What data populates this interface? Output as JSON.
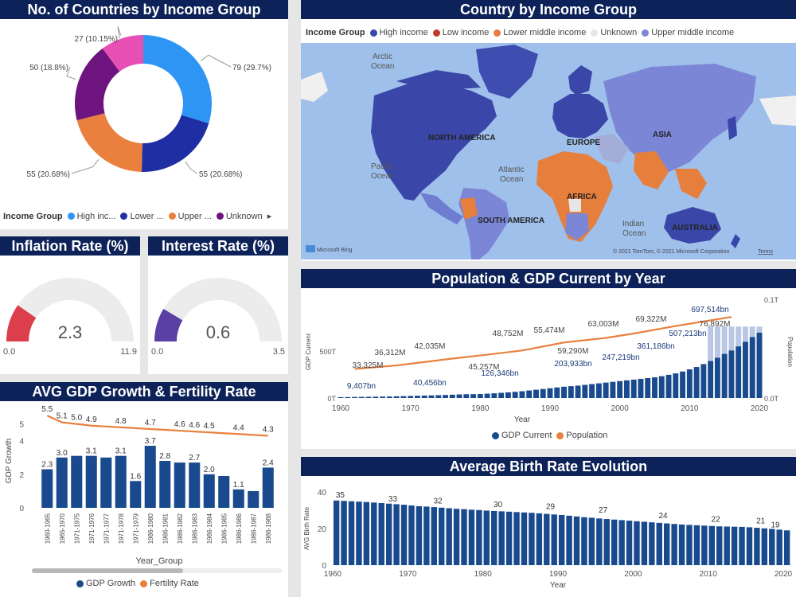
{
  "donut": {
    "title": "No. of Countries by Income Group",
    "legend_title": "Income Group",
    "legend": [
      {
        "label": "High inc...",
        "color": "#2f95f5"
      },
      {
        "label": "Lower ...",
        "color": "#1f2fa3"
      },
      {
        "label": "Upper ...",
        "color": "#e9803e"
      },
      {
        "label": "Unknown",
        "color": "#6e147e"
      }
    ],
    "more_icon": "caret-right-icon",
    "chart_data": {
      "type": "pie",
      "slices": [
        {
          "label": "79 (29.7%)",
          "value": 79,
          "color": "#2f95f5"
        },
        {
          "label": "55 (20.68%)",
          "value": 55,
          "color": "#1f2fa3"
        },
        {
          "label": "55 (20.68%)",
          "value": 55,
          "color": "#e9803e"
        },
        {
          "label": "50 (18.8%)",
          "value": 50,
          "color": "#6e147e"
        },
        {
          "label": "27 (10.15%)",
          "value": 27,
          "color": "#e84fb4"
        }
      ]
    }
  },
  "map": {
    "title": "Country by Income Group",
    "legend_title": "Income Group",
    "legend": [
      {
        "label": "High income",
        "color": "#3949ab"
      },
      {
        "label": "Low income",
        "color": "#c0392b"
      },
      {
        "label": "Lower middle income",
        "color": "#e67e3c"
      },
      {
        "label": "Unknown",
        "color": "#e6e6e6"
      },
      {
        "label": "Upper middle income",
        "color": "#7b86d6"
      }
    ],
    "labels": {
      "north_america": "NORTH AMERICA",
      "europe": "EUROPE",
      "asia": "ASIA",
      "africa": "AFRICA",
      "south_america": "SOUTH AMERICA",
      "australia": "AUSTRALIA",
      "arctic_1": "Arctic",
      "arctic_2": "Ocean",
      "pacific_1": "Pacific",
      "pacific_2": "Ocean",
      "atlantic_1": "Atlantic",
      "atlantic_2": "Ocean",
      "indian_1": "Indian",
      "indian_2": "Ocean"
    },
    "attribution": "© 2021 TomTom, © 2021 Microsoft Corporation",
    "terms": "Terms",
    "bing_logo": "Microsoft Bing"
  },
  "inflation": {
    "title": "Inflation Rate (%)",
    "value": "2.3",
    "min": "0.0",
    "max": "11.9",
    "chart_data": {
      "type": "gauge",
      "value": 2.3,
      "min": 0,
      "max": 11.9,
      "color": "#dd3e4c"
    }
  },
  "interest": {
    "title": "Interest Rate (%)",
    "value": "0.6",
    "min": "0.0",
    "max": "3.5",
    "chart_data": {
      "type": "gauge",
      "value": 0.6,
      "min": 0,
      "max": 3.5,
      "color": "#5b3fa3"
    }
  },
  "gdp_fert": {
    "title": "AVG GDP Growth & Fertility Rate",
    "xlabel": "Year_Group",
    "ylabel": "GDP Growth",
    "yticks": [
      "0",
      "2",
      "4",
      "5"
    ],
    "legend": [
      {
        "label": "GDP Growth",
        "color": "#1a4a8e"
      },
      {
        "label": "Fertility Rate",
        "color": "#e9803e"
      }
    ],
    "chart_data": {
      "type": "bar",
      "categories": [
        "1960-1965",
        "1965-1970",
        "1971-1975",
        "1971-1976",
        "1971-1977",
        "1971-1978",
        "1971-1979",
        "1986-1980",
        "1986-1981",
        "1986-1982",
        "1986-1983",
        "1986-1984",
        "1986-1985",
        "1986-1986",
        "1986-1987",
        "1986-1988"
      ],
      "ylim": [
        0,
        5.6
      ],
      "series": [
        {
          "name": "GDP Growth",
          "values": [
            2.3,
            3.0,
            3.1,
            3.1,
            3.0,
            3.1,
            1.6,
            3.7,
            2.8,
            2.7,
            2.7,
            2.0,
            1.9,
            1.1,
            1.0,
            2.4
          ]
        },
        {
          "name": "Fertility Rate",
          "values": [
            5.5,
            5.1,
            5.0,
            4.9,
            4.85,
            4.8,
            4.75,
            4.7,
            4.65,
            4.6,
            4.55,
            4.5,
            4.45,
            4.4,
            4.35,
            4.3
          ]
        }
      ],
      "bar_labels": [
        "2.3",
        "3.0",
        "",
        "3.1",
        "",
        "3.1",
        "1.6",
        "3.7",
        "2.8",
        "",
        "2.7",
        "2.0",
        "",
        "1.1",
        "",
        "2.4"
      ],
      "line_labels": [
        "5.5",
        "5.1",
        "5.0",
        "4.9",
        "",
        "4.8",
        "",
        "4.7",
        "",
        "4.6",
        "4.6",
        "4.5",
        "",
        "4.4",
        "",
        "4.3"
      ]
    }
  },
  "pop_gdp": {
    "title": "Population & GDP Current by Year",
    "xlabel": "Year",
    "ylabel_left": "GDP Current",
    "ylabel_right": "Population",
    "yticks_left": [
      "0T",
      "500T"
    ],
    "yticks_right": [
      "0.0T",
      "0.1T"
    ],
    "xticks": [
      "1960",
      "1970",
      "1980",
      "1990",
      "2000",
      "2010",
      "2020"
    ],
    "legend": [
      {
        "label": "GDP Current",
        "color": "#1a4a8e"
      },
      {
        "label": "Population",
        "color": "#e9803e"
      }
    ],
    "bar_labels": [
      "9,407bn",
      "40,456bn",
      "126,346bn",
      "203,933bn",
      "247,219bn",
      "361,186bn",
      "507,213bn",
      "697,514bn"
    ],
    "line_labels": [
      "33,325M",
      "36,312M",
      "42,035M",
      "45,257M",
      "48,752M",
      "55,474M",
      "59,290M",
      "63,003M",
      "69,322M",
      "76,892M"
    ],
    "chart_data": {
      "type": "bar",
      "x_range": [
        1960,
        2020
      ],
      "bars_start": 1960,
      "gdp_ylim": [
        0,
        1000
      ],
      "gdp_values": [
        9.4,
        10,
        11,
        12,
        13,
        14,
        15,
        16,
        18,
        20,
        22,
        24,
        26,
        28,
        30,
        32,
        35,
        38,
        40,
        40.5,
        42,
        46,
        50,
        55,
        60,
        66,
        72,
        80,
        88,
        96,
        104,
        112,
        120,
        126,
        132,
        140,
        148,
        156,
        164,
        172,
        180,
        188,
        196,
        204,
        212,
        220,
        232,
        247,
        262,
        282,
        305,
        330,
        361,
        395,
        430,
        470,
        507,
        550,
        600,
        650,
        697
      ],
      "population_label_points": [
        [
          1962,
          33.3
        ],
        [
          1968,
          36.3
        ],
        [
          1976,
          42.0
        ],
        [
          1981,
          45.3
        ],
        [
          1986,
          48.8
        ],
        [
          1992,
          55.5
        ],
        [
          1998,
          59.3
        ],
        [
          2002,
          63.0
        ],
        [
          2008,
          69.3
        ],
        [
          2016,
          76.9
        ]
      ]
    }
  },
  "birth": {
    "title": "Average Birth Rate Evolution",
    "xlabel": "Year",
    "ylabel": "AVG Birth Rate",
    "yticks": [
      "0",
      "20",
      "40"
    ],
    "xticks": [
      "1960",
      "1970",
      "1980",
      "1990",
      "2000",
      "2010",
      "2020"
    ],
    "labels": [
      "35",
      "33",
      "32",
      "30",
      "29",
      "27",
      "24",
      "22",
      "21",
      "19"
    ],
    "chart_data": {
      "type": "bar",
      "x_range": [
        1960,
        2020
      ],
      "ylim": [
        0,
        40
      ],
      "start": 1960,
      "values": [
        35.3,
        35.1,
        34.9,
        34.7,
        34.5,
        34.2,
        33.9,
        33.6,
        33.3,
        33.0,
        32.6,
        32.2,
        32.0,
        31.7,
        31.4,
        31.1,
        30.8,
        30.6,
        30.3,
        30.1,
        29.8,
        29.6,
        29.4,
        29.2,
        29.0,
        28.8,
        28.6,
        28.3,
        28.0,
        27.7,
        27.4,
        27.0,
        26.6,
        26.2,
        25.9,
        25.5,
        25.2,
        24.9,
        24.6,
        24.3,
        24.0,
        23.7,
        23.4,
        23.1,
        22.8,
        22.5,
        22.2,
        22.0,
        21.8,
        21.6,
        21.4,
        21.2,
        21.1,
        21.0,
        20.9,
        20.7,
        20.4,
        20.1,
        19.8,
        19.4,
        19.0
      ]
    }
  }
}
